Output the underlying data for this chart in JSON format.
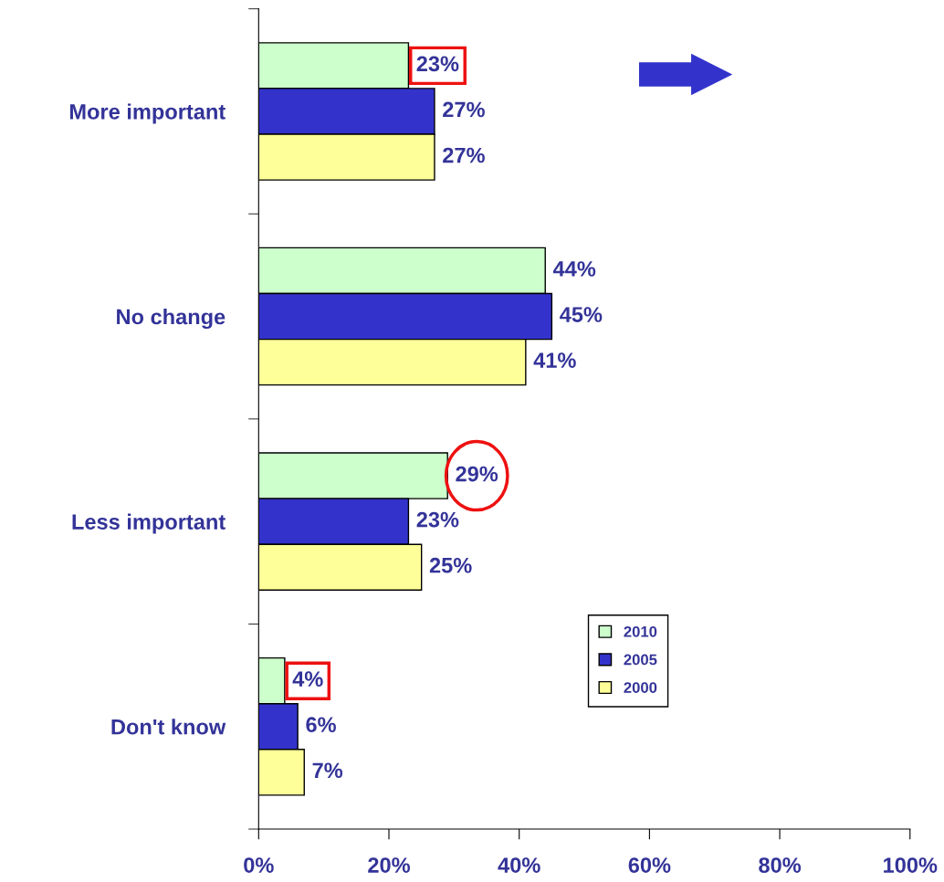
{
  "chart_data": {
    "type": "bar",
    "orientation": "horizontal",
    "categories": [
      "More important",
      "No change",
      "Less important",
      "Don't know"
    ],
    "series": [
      {
        "name": "2010",
        "color": "#ccffcc",
        "values": [
          23,
          44,
          29,
          4
        ],
        "value_labels": [
          "23%",
          "44%",
          "29%",
          "4%"
        ]
      },
      {
        "name": "2005",
        "color": "#3333cc",
        "values": [
          27,
          45,
          23,
          6
        ],
        "value_labels": [
          "27%",
          "45%",
          "23%",
          "6%"
        ]
      },
      {
        "name": "2000",
        "color": "#ffff99",
        "values": [
          27,
          41,
          25,
          7
        ],
        "value_labels": [
          "27%",
          "41%",
          "25%",
          "7%"
        ]
      }
    ],
    "xlim": [
      0,
      100
    ],
    "xticks": [
      {
        "value": 0,
        "label": "0%"
      },
      {
        "value": 20,
        "label": "20%"
      },
      {
        "value": 40,
        "label": "40%"
      },
      {
        "value": 60,
        "label": "60%"
      },
      {
        "value": 80,
        "label": "80%"
      },
      {
        "value": 100,
        "label": "100%"
      }
    ],
    "grid": false,
    "legend": "bottom right"
  }
}
